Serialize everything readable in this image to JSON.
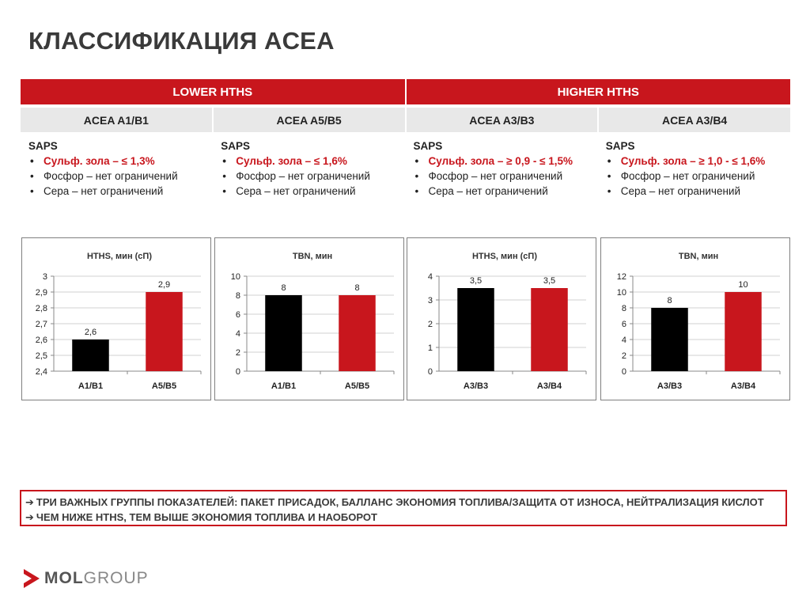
{
  "title": "КЛАССИФИКАЦИЯ ACEA",
  "table": {
    "groups": [
      "LOWER HTHS",
      "HIGHER HTHS"
    ],
    "subheaders": [
      "ACEA A1/B1",
      "ACEA A5/B5",
      "ACEA A3/B3",
      "ACEA A3/B4"
    ],
    "specs": [
      {
        "title": "SAPS",
        "items": [
          "Сульф. зола – ≤ 1,3%",
          "Фосфор – нет ограничений",
          "Сера – нет ограничений"
        ]
      },
      {
        "title": "SAPS",
        "items": [
          "Сульф. зола – ≤ 1,6%",
          "Фосфор – нет ограничений",
          "Сера – нет ограничений"
        ]
      },
      {
        "title": "SAPS",
        "items": [
          "Сульф. зола – ≥ 0,9 - ≤ 1,5%",
          "Фосфор – нет ограничений",
          "Сера – нет ограничений"
        ]
      },
      {
        "title": "SAPS",
        "items": [
          "Сульф. зола – ≥ 1,0 - ≤ 1,6%",
          "Фосфор – нет ограничений",
          "Сера – нет ограничений"
        ]
      }
    ]
  },
  "chart_data": [
    {
      "type": "bar",
      "title": "HTHS, мин (сП)",
      "categories": [
        "A1/B1",
        "A5/B5"
      ],
      "values": [
        2.6,
        2.9
      ],
      "value_labels": [
        "2,6",
        "2,9"
      ],
      "ylim": [
        2.4,
        3
      ],
      "yticks": [
        "2,4",
        "2,5",
        "2,6",
        "2,7",
        "2,8",
        "2,9",
        "3"
      ],
      "colors": [
        "#000000",
        "#c8161d"
      ],
      "grid": true
    },
    {
      "type": "bar",
      "title": "TBN, мин",
      "categories": [
        "A1/B1",
        "A5/B5"
      ],
      "values": [
        8,
        8
      ],
      "value_labels": [
        "8",
        "8"
      ],
      "ylim": [
        0,
        10
      ],
      "yticks": [
        "0",
        "2",
        "4",
        "6",
        "8",
        "10"
      ],
      "colors": [
        "#000000",
        "#c8161d"
      ],
      "grid": true
    },
    {
      "type": "bar",
      "title": "HTHS, мин (сП)",
      "categories": [
        "A3/B3",
        "A3/B4"
      ],
      "values": [
        3.5,
        3.5
      ],
      "value_labels": [
        "3,5",
        "3,5"
      ],
      "ylim": [
        0,
        4
      ],
      "yticks": [
        "0",
        "1",
        "2",
        "3",
        "4"
      ],
      "colors": [
        "#000000",
        "#c8161d"
      ],
      "grid": true
    },
    {
      "type": "bar",
      "title": "TBN, мин",
      "categories": [
        "A3/B3",
        "A3/B4"
      ],
      "values": [
        8,
        10
      ],
      "value_labels": [
        "8",
        "10"
      ],
      "ylim": [
        0,
        12
      ],
      "yticks": [
        "0",
        "2",
        "4",
        "6",
        "8",
        "10",
        "12"
      ],
      "colors": [
        "#000000",
        "#c8161d"
      ],
      "grid": true
    }
  ],
  "notes": [
    "ТРИ ВАЖНЫХ ГРУППЫ ПОКАЗАТЕЛЕЙ: ПАКЕТ ПРИСАДОК, БАЛЛАНС ЭКОНОМИЯ ТОПЛИВА/ЗАЩИТА ОТ ИЗНОСА, НЕЙТРАЛИЗАЦИЯ КИСЛОТ",
    "ЧЕМ НИЖЕ HTHS, ТЕМ ВЫШЕ ЭКОНОМИЯ ТОПЛИВА И НАОБОРОТ"
  ],
  "note_arrow": "➔",
  "logo": {
    "part1": "MOL",
    "part2": "GROUP",
    "mark_icon": "mol-triangle-icon"
  },
  "colors": {
    "accent": "#c8161d",
    "header_gray": "#e8e8e8",
    "title": "#3a3a3a"
  }
}
